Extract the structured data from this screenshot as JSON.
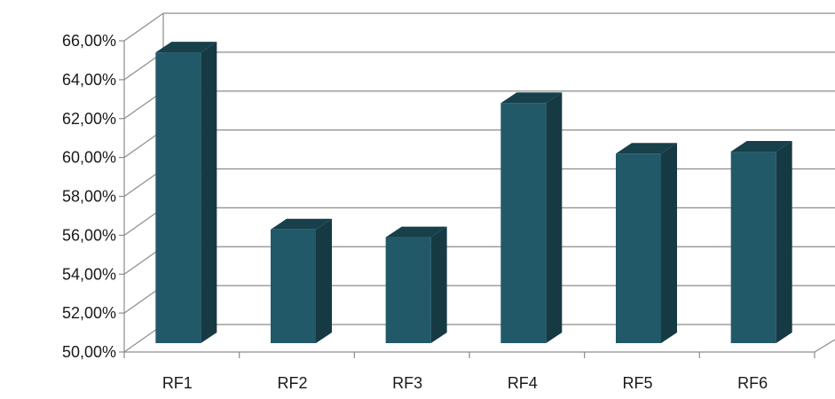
{
  "chart_data": {
    "type": "bar",
    "title": "",
    "xlabel": "",
    "ylabel": "",
    "categories": [
      "RF1",
      "RF2",
      "RF3",
      "RF4",
      "RF5",
      "RF6"
    ],
    "values": [
      65.4,
      56.3,
      55.9,
      62.8,
      60.2,
      60.3
    ],
    "ylim": [
      50,
      66
    ],
    "yticks": [
      50,
      52,
      54,
      56,
      58,
      60,
      62,
      64,
      66
    ],
    "ytick_labels": [
      "50,00%",
      "52,00%",
      "54,00%",
      "56,00%",
      "58,00%",
      "60,00%",
      "62,00%",
      "64,00%",
      "66,00%"
    ],
    "grid": true,
    "style": "3d",
    "colors": {
      "front": "#215968",
      "side": "#163a44",
      "top": "#17404b",
      "grid": "#8c8c8c"
    }
  }
}
